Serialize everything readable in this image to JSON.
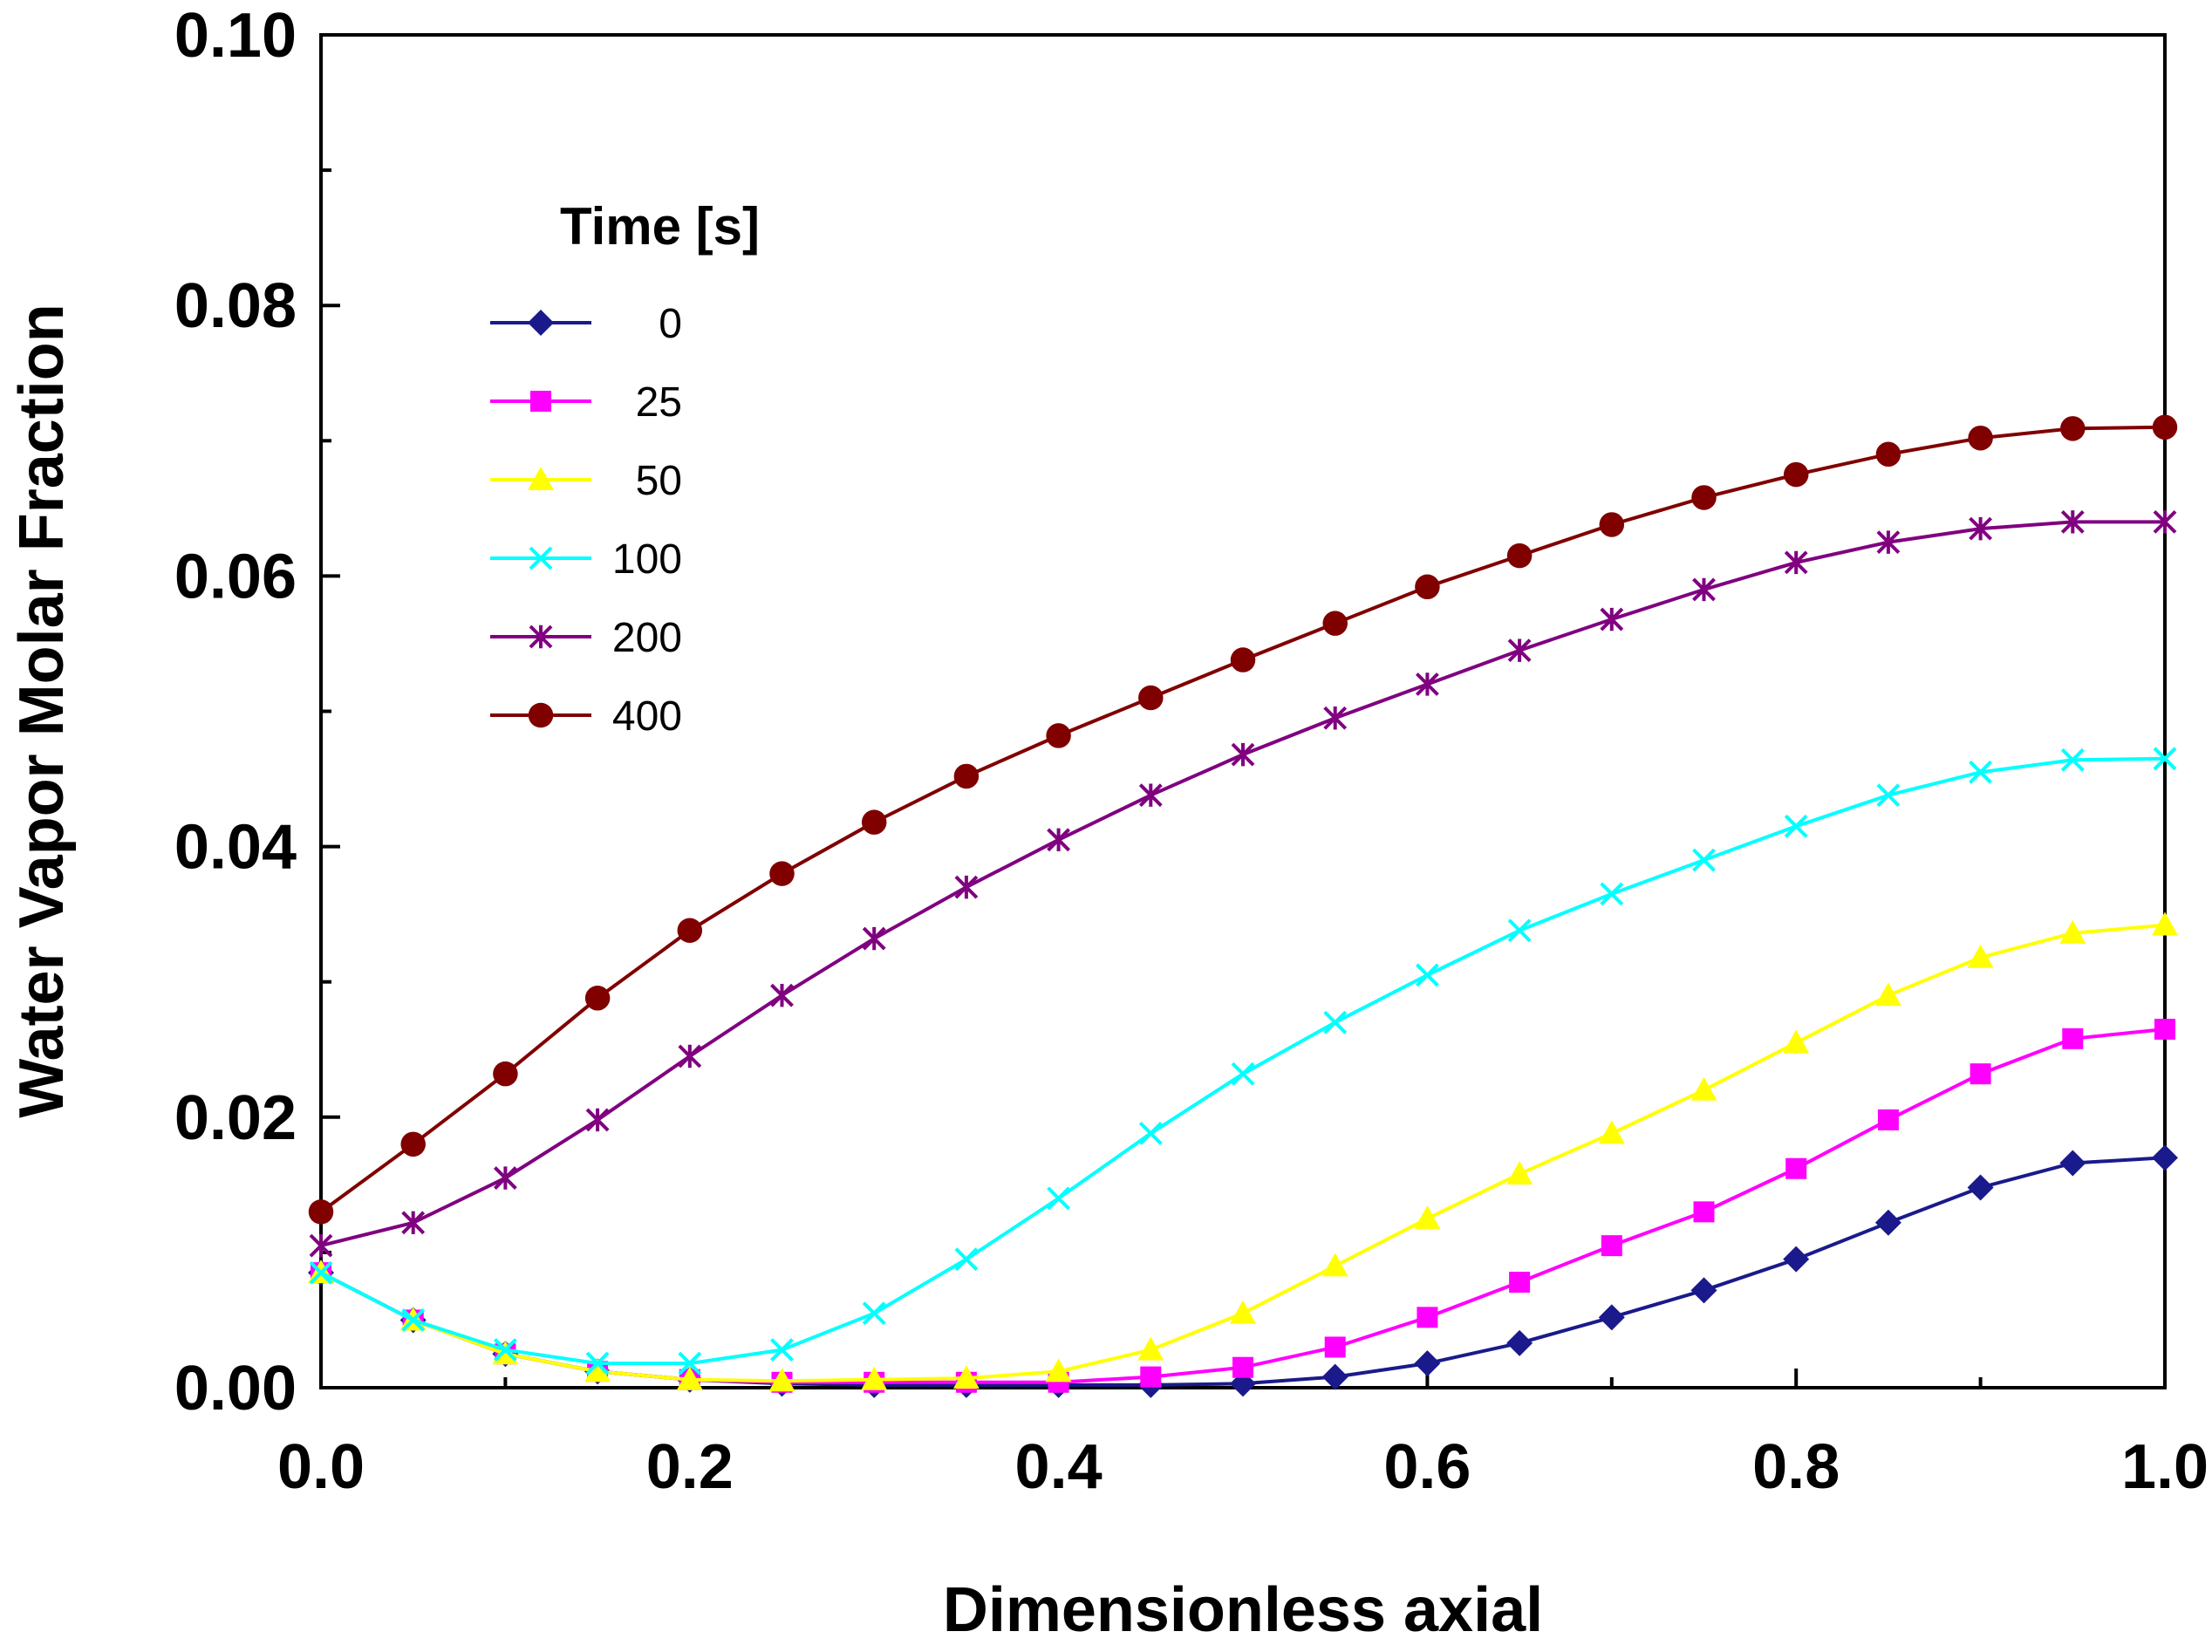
{
  "chart_data": {
    "type": "line",
    "title": "",
    "xlabel": "Dimensionless axial",
    "ylabel": "Water Vapor Molar Fraction",
    "xlim": [
      0,
      1
    ],
    "ylim": [
      0,
      0.1
    ],
    "x_ticks": [
      "0.0",
      "0.2",
      "0.4",
      "0.6",
      "0.8",
      "1.0"
    ],
    "y_ticks": [
      "0.00",
      "0.02",
      "0.04",
      "0.06",
      "0.08",
      "0.10"
    ],
    "legend_title": "Time [s]",
    "legend_position": "upper-left",
    "grid": false,
    "series": [
      {
        "name": "0",
        "color": "#1a1a8c",
        "marker": "diamond",
        "x": [
          0,
          0.05,
          0.1,
          0.15,
          0.2,
          0.25,
          0.3,
          0.35,
          0.4,
          0.45,
          0.5,
          0.55,
          0.6,
          0.65,
          0.7,
          0.75,
          0.8,
          0.85,
          0.9,
          0.95,
          1.0
        ],
        "y": [
          0.0085,
          0.005,
          0.0025,
          0.0012,
          0.0006,
          0.0003,
          0.0002,
          0.0002,
          0.0002,
          0.0002,
          0.0003,
          0.0008,
          0.0018,
          0.0033,
          0.0052,
          0.0072,
          0.0095,
          0.0122,
          0.0148,
          0.0166,
          0.017
        ]
      },
      {
        "name": "25",
        "color": "#ff00ff",
        "marker": "square",
        "x": [
          0,
          0.05,
          0.1,
          0.15,
          0.2,
          0.25,
          0.3,
          0.35,
          0.4,
          0.45,
          0.5,
          0.55,
          0.6,
          0.65,
          0.7,
          0.75,
          0.8,
          0.85,
          0.9,
          0.95,
          1.0
        ],
        "y": [
          0.0085,
          0.005,
          0.0025,
          0.0012,
          0.0006,
          0.0004,
          0.0004,
          0.0004,
          0.0004,
          0.0008,
          0.0015,
          0.003,
          0.0052,
          0.0078,
          0.0105,
          0.013,
          0.0162,
          0.0198,
          0.0232,
          0.0258,
          0.0265
        ]
      },
      {
        "name": "50",
        "color": "#ffff00",
        "marker": "triangle",
        "x": [
          0,
          0.05,
          0.1,
          0.15,
          0.2,
          0.25,
          0.3,
          0.35,
          0.4,
          0.45,
          0.5,
          0.55,
          0.6,
          0.65,
          0.7,
          0.75,
          0.8,
          0.85,
          0.9,
          0.95,
          1.0
        ],
        "y": [
          0.0085,
          0.005,
          0.0025,
          0.0012,
          0.0006,
          0.0005,
          0.0006,
          0.0007,
          0.0012,
          0.0028,
          0.0055,
          0.009,
          0.0125,
          0.0158,
          0.0188,
          0.022,
          0.0255,
          0.029,
          0.0318,
          0.0336,
          0.0342
        ]
      },
      {
        "name": "100",
        "color": "#00ffff",
        "marker": "x",
        "x": [
          0,
          0.05,
          0.1,
          0.15,
          0.2,
          0.25,
          0.3,
          0.35,
          0.4,
          0.45,
          0.5,
          0.55,
          0.6,
          0.65,
          0.7,
          0.75,
          0.8,
          0.85,
          0.9,
          0.95,
          1.0
        ],
        "y": [
          0.0085,
          0.005,
          0.0028,
          0.0018,
          0.0018,
          0.0028,
          0.0055,
          0.0095,
          0.014,
          0.0188,
          0.0232,
          0.027,
          0.0305,
          0.0338,
          0.0365,
          0.039,
          0.0415,
          0.0438,
          0.0455,
          0.0464,
          0.0465
        ]
      },
      {
        "name": "200",
        "color": "#800080",
        "marker": "star",
        "x": [
          0,
          0.05,
          0.1,
          0.15,
          0.2,
          0.25,
          0.3,
          0.35,
          0.4,
          0.45,
          0.5,
          0.55,
          0.6,
          0.65,
          0.7,
          0.75,
          0.8,
          0.85,
          0.9,
          0.95,
          1.0
        ],
        "y": [
          0.0105,
          0.0122,
          0.0155,
          0.0198,
          0.0245,
          0.029,
          0.0332,
          0.037,
          0.0405,
          0.0438,
          0.0468,
          0.0495,
          0.052,
          0.0545,
          0.0568,
          0.059,
          0.061,
          0.0625,
          0.0635,
          0.064,
          0.064
        ]
      },
      {
        "name": "400",
        "color": "#800000",
        "marker": "circle",
        "x": [
          0,
          0.05,
          0.1,
          0.15,
          0.2,
          0.25,
          0.3,
          0.35,
          0.4,
          0.45,
          0.5,
          0.55,
          0.6,
          0.65,
          0.7,
          0.75,
          0.8,
          0.85,
          0.9,
          0.95,
          1.0
        ],
        "y": [
          0.013,
          0.018,
          0.0232,
          0.0288,
          0.0338,
          0.038,
          0.0418,
          0.0452,
          0.0482,
          0.051,
          0.0538,
          0.0565,
          0.0592,
          0.0615,
          0.0638,
          0.0658,
          0.0675,
          0.069,
          0.0702,
          0.0709,
          0.071
        ]
      }
    ]
  }
}
